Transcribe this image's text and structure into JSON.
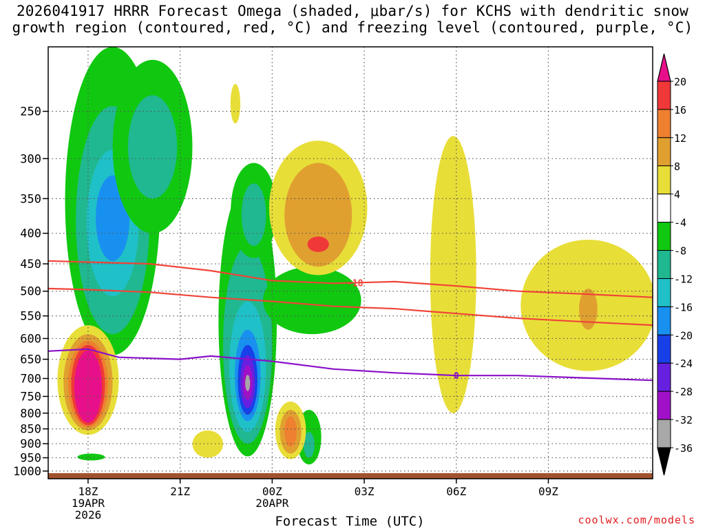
{
  "title": "2026041917 HRRR Forecast Omega (shaded, μbar/s) for KCHS with dendritic snow\ngrowth region (contoured, red, °C) and freezing level (contoured, purple, °C)",
  "credit": "coolwx.com/models",
  "colors": {
    "frame": "#000000",
    "grid": "#555555",
    "ground": "#a0522d",
    "isotherm_dgz": "#f04438",
    "isotherm_freezing": "#8a10c8"
  },
  "chart_data": {
    "type": "heatmap",
    "title": "2026041917 HRRR Forecast Omega (shaded, μbar/s) for KCHS with dendritic snow growth region (contoured, red, °C) and freezing level (contoured, purple, °C)",
    "xlabel": "Forecast Time (UTC)",
    "ylabel": "",
    "x_range_hours": [
      -0.3,
      19.4
    ],
    "y_range_hpa": [
      1030,
      195
    ],
    "y_scale": "log-pressure",
    "grid": true,
    "x_ticks": [
      {
        "hour": 1,
        "label": "18Z",
        "sub1": "19APR",
        "sub2": "2026"
      },
      {
        "hour": 4,
        "label": "21Z",
        "sub1": "",
        "sub2": ""
      },
      {
        "hour": 7,
        "label": "00Z",
        "sub1": "20APR",
        "sub2": ""
      },
      {
        "hour": 10,
        "label": "03Z",
        "sub1": "",
        "sub2": ""
      },
      {
        "hour": 13,
        "label": "06Z",
        "sub1": "",
        "sub2": ""
      },
      {
        "hour": 16,
        "label": "09Z",
        "sub1": "",
        "sub2": ""
      }
    ],
    "y_ticks": [
      {
        "p": 250,
        "label": "250"
      },
      {
        "p": 300,
        "label": "300"
      },
      {
        "p": 350,
        "label": "350"
      },
      {
        "p": 400,
        "label": "400"
      },
      {
        "p": 450,
        "label": "450"
      },
      {
        "p": 500,
        "label": "500"
      },
      {
        "p": 550,
        "label": "550"
      },
      {
        "p": 600,
        "label": "600"
      },
      {
        "p": 650,
        "label": "650"
      },
      {
        "p": 700,
        "label": "700"
      },
      {
        "p": 750,
        "label": "750"
      },
      {
        "p": 800,
        "label": "800"
      },
      {
        "p": 850,
        "label": "850"
      },
      {
        "p": 900,
        "label": "900"
      },
      {
        "p": 950,
        "label": "950"
      },
      {
        "p": 1000,
        "label": "1000"
      }
    ],
    "colorbar": {
      "bins": [
        {
          "range": "> 20",
          "color": "#e8108a"
        },
        {
          "range": "16 to 20",
          "color": "#f03838"
        },
        {
          "range": "12 to 16",
          "color": "#ee8030"
        },
        {
          "range": "8 to 12",
          "color": "#e0a030"
        },
        {
          "range": "4 to 8",
          "color": "#e8de38"
        },
        {
          "range": "-4 to 4",
          "color": "#ffffff"
        },
        {
          "range": "-8 to -4",
          "color": "#10c810"
        },
        {
          "range": "-12 to -8",
          "color": "#20b890"
        },
        {
          "range": "-16 to -12",
          "color": "#20c0c8"
        },
        {
          "range": "-20 to -16",
          "color": "#1890f0"
        },
        {
          "range": "-24 to -20",
          "color": "#1840e8"
        },
        {
          "range": "-28 to -24",
          "color": "#6820e0"
        },
        {
          "range": "-32 to -28",
          "color": "#a010c8"
        },
        {
          "range": "-36 to -32",
          "color": "#a8a8a8"
        },
        {
          "range": "< -36",
          "color": "#000000"
        }
      ],
      "labels": [
        "20",
        "16",
        "12",
        "8",
        "4",
        "-4",
        "-8",
        "-12",
        "-16",
        "-20",
        "-24",
        "-28",
        "-32",
        "-36"
      ]
    },
    "omega_blobs": [
      {
        "name": "upper-ascent-core",
        "hour": 1.8,
        "p": 360,
        "levels": [
          {
            "v": -4,
            "half_width_h": 1.55,
            "p_top": 195,
            "p_bot": 640
          },
          {
            "v": -8,
            "half_width_h": 1.2,
            "p_top": 245,
            "p_bot": 590
          },
          {
            "v": -12,
            "half_width_h": 0.85,
            "p_top": 290,
            "p_bot": 510
          },
          {
            "v": -16,
            "half_width_h": 0.55,
            "p_top": 320,
            "p_bot": 445
          }
        ]
      },
      {
        "name": "upper-ascent-east-arm",
        "hour": 3.1,
        "p": 300,
        "levels": [
          {
            "v": -4,
            "half_width_h": 1.3,
            "p_top": 205,
            "p_bot": 400
          },
          {
            "v": -8,
            "half_width_h": 0.8,
            "p_top": 235,
            "p_bot": 350
          }
        ]
      },
      {
        "name": "midlevel-ascent-core",
        "hour": 6.2,
        "p": 700,
        "levels": [
          {
            "v": -4,
            "half_width_h": 0.95,
            "p_top": 330,
            "p_bot": 945
          },
          {
            "v": -8,
            "half_width_h": 0.8,
            "p_top": 420,
            "p_bot": 900
          },
          {
            "v": -12,
            "half_width_h": 0.6,
            "p_top": 520,
            "p_bot": 860
          },
          {
            "v": -16,
            "half_width_h": 0.42,
            "p_top": 580,
            "p_bot": 825
          },
          {
            "v": -20,
            "half_width_h": 0.32,
            "p_top": 615,
            "p_bot": 805
          },
          {
            "v": -24,
            "half_width_h": 0.24,
            "p_top": 640,
            "p_bot": 785
          },
          {
            "v": -28,
            "half_width_h": 0.16,
            "p_top": 665,
            "p_bot": 760
          },
          {
            "v": -32,
            "half_width_h": 0.08,
            "p_top": 690,
            "p_bot": 735
          }
        ]
      },
      {
        "name": "ascent-tail-upper",
        "hour": 6.4,
        "p": 350,
        "levels": [
          {
            "v": -4,
            "half_width_h": 0.75,
            "p_top": 305,
            "p_bot": 440
          },
          {
            "v": -8,
            "half_width_h": 0.4,
            "p_top": 330,
            "p_bot": 420
          }
        ]
      },
      {
        "name": "ascent-east-lobe",
        "hour": 8.3,
        "p": 560,
        "levels": [
          {
            "v": -4,
            "half_width_h": 1.6,
            "p_top": 455,
            "p_bot": 590
          }
        ]
      },
      {
        "name": "ascent-low-lobe",
        "hour": 8.2,
        "p": 860,
        "levels": [
          {
            "v": -4,
            "half_width_h": 0.4,
            "p_top": 790,
            "p_bot": 975
          },
          {
            "v": -8,
            "half_width_h": 0.18,
            "p_top": 860,
            "p_bot": 950
          }
        ]
      },
      {
        "name": "ascent-near-surface",
        "hour": 1.1,
        "p": 945,
        "levels": [
          {
            "v": -4,
            "half_width_h": 0.45,
            "p_top": 935,
            "p_bot": 960
          }
        ]
      },
      {
        "name": "lowlevel-descent-core",
        "hour": 1.0,
        "p": 730,
        "levels": [
          {
            "v": 4,
            "half_width_h": 1.0,
            "p_top": 570,
            "p_bot": 870
          },
          {
            "v": 8,
            "half_width_h": 0.8,
            "p_top": 590,
            "p_bot": 855
          },
          {
            "v": 12,
            "half_width_h": 0.65,
            "p_top": 605,
            "p_bot": 845
          },
          {
            "v": 16,
            "half_width_h": 0.55,
            "p_top": 615,
            "p_bot": 838
          },
          {
            "v": 20,
            "half_width_h": 0.45,
            "p_top": 628,
            "p_bot": 830
          }
        ]
      },
      {
        "name": "upper-descent-core",
        "hour": 8.5,
        "p": 360,
        "levels": [
          {
            "v": 4,
            "half_width_h": 1.6,
            "p_top": 280,
            "p_bot": 470
          },
          {
            "v": 8,
            "half_width_h": 1.1,
            "p_top": 305,
            "p_bot": 455
          },
          {
            "v": 16,
            "half_width_h": 0.35,
            "p_top": 405,
            "p_bot": 430
          }
        ]
      },
      {
        "name": "descent-low-lobe",
        "hour": 7.6,
        "p": 855,
        "levels": [
          {
            "v": 4,
            "half_width_h": 0.5,
            "p_top": 765,
            "p_bot": 955
          },
          {
            "v": 8,
            "half_width_h": 0.35,
            "p_top": 790,
            "p_bot": 935
          },
          {
            "v": 12,
            "half_width_h": 0.2,
            "p_top": 810,
            "p_bot": 910
          }
        ]
      },
      {
        "name": "descent-small-low",
        "hour": 4.9,
        "p": 890,
        "levels": [
          {
            "v": 4,
            "half_width_h": 0.5,
            "p_top": 855,
            "p_bot": 950
          }
        ]
      },
      {
        "name": "descent-tiny-upper",
        "hour": 5.8,
        "p": 240,
        "levels": [
          {
            "v": 4,
            "half_width_h": 0.16,
            "p_top": 225,
            "p_bot": 262
          }
        ]
      },
      {
        "name": "descent-06z-column",
        "hour": 12.9,
        "p": 480,
        "levels": [
          {
            "v": 4,
            "half_width_h": 0.75,
            "p_top": 275,
            "p_bot": 800
          }
        ]
      },
      {
        "name": "descent-09z-region",
        "hour": 17.3,
        "p": 560,
        "levels": [
          {
            "v": 4,
            "half_width_h": 2.2,
            "p_top": 410,
            "p_bot": 680
          },
          {
            "v": 8,
            "half_width_h": 0.3,
            "p_top": 495,
            "p_bot": 580
          }
        ]
      }
    ],
    "isotherms": [
      {
        "name": "dgz-minus18",
        "value_c": -18,
        "label": "-18",
        "label_hour": 9.7,
        "color_key": "isotherm_dgz",
        "hours": [
          -0.3,
          1,
          3,
          5,
          7,
          9,
          11,
          13,
          15,
          17,
          19.4
        ],
        "p": [
          445,
          447,
          450,
          462,
          480,
          485,
          482,
          490,
          500,
          505,
          512
        ]
      },
      {
        "name": "dgz-minus12",
        "value_c": -12,
        "label": "",
        "label_hour": null,
        "color_key": "isotherm_dgz",
        "hours": [
          -0.3,
          1,
          3,
          5,
          7,
          9,
          11,
          13,
          15,
          17,
          19.4
        ],
        "p": [
          495,
          497,
          502,
          512,
          520,
          530,
          535,
          545,
          555,
          562,
          570
        ]
      },
      {
        "name": "freezing-level",
        "value_c": 0,
        "label": "0",
        "label_hour": 13.0,
        "color_key": "isotherm_freezing",
        "hours": [
          -0.3,
          1,
          2,
          4,
          5,
          7,
          9,
          11,
          13,
          15,
          17,
          19.4
        ],
        "p": [
          630,
          625,
          645,
          650,
          642,
          655,
          675,
          685,
          692,
          692,
          698,
          705
        ]
      }
    ]
  }
}
